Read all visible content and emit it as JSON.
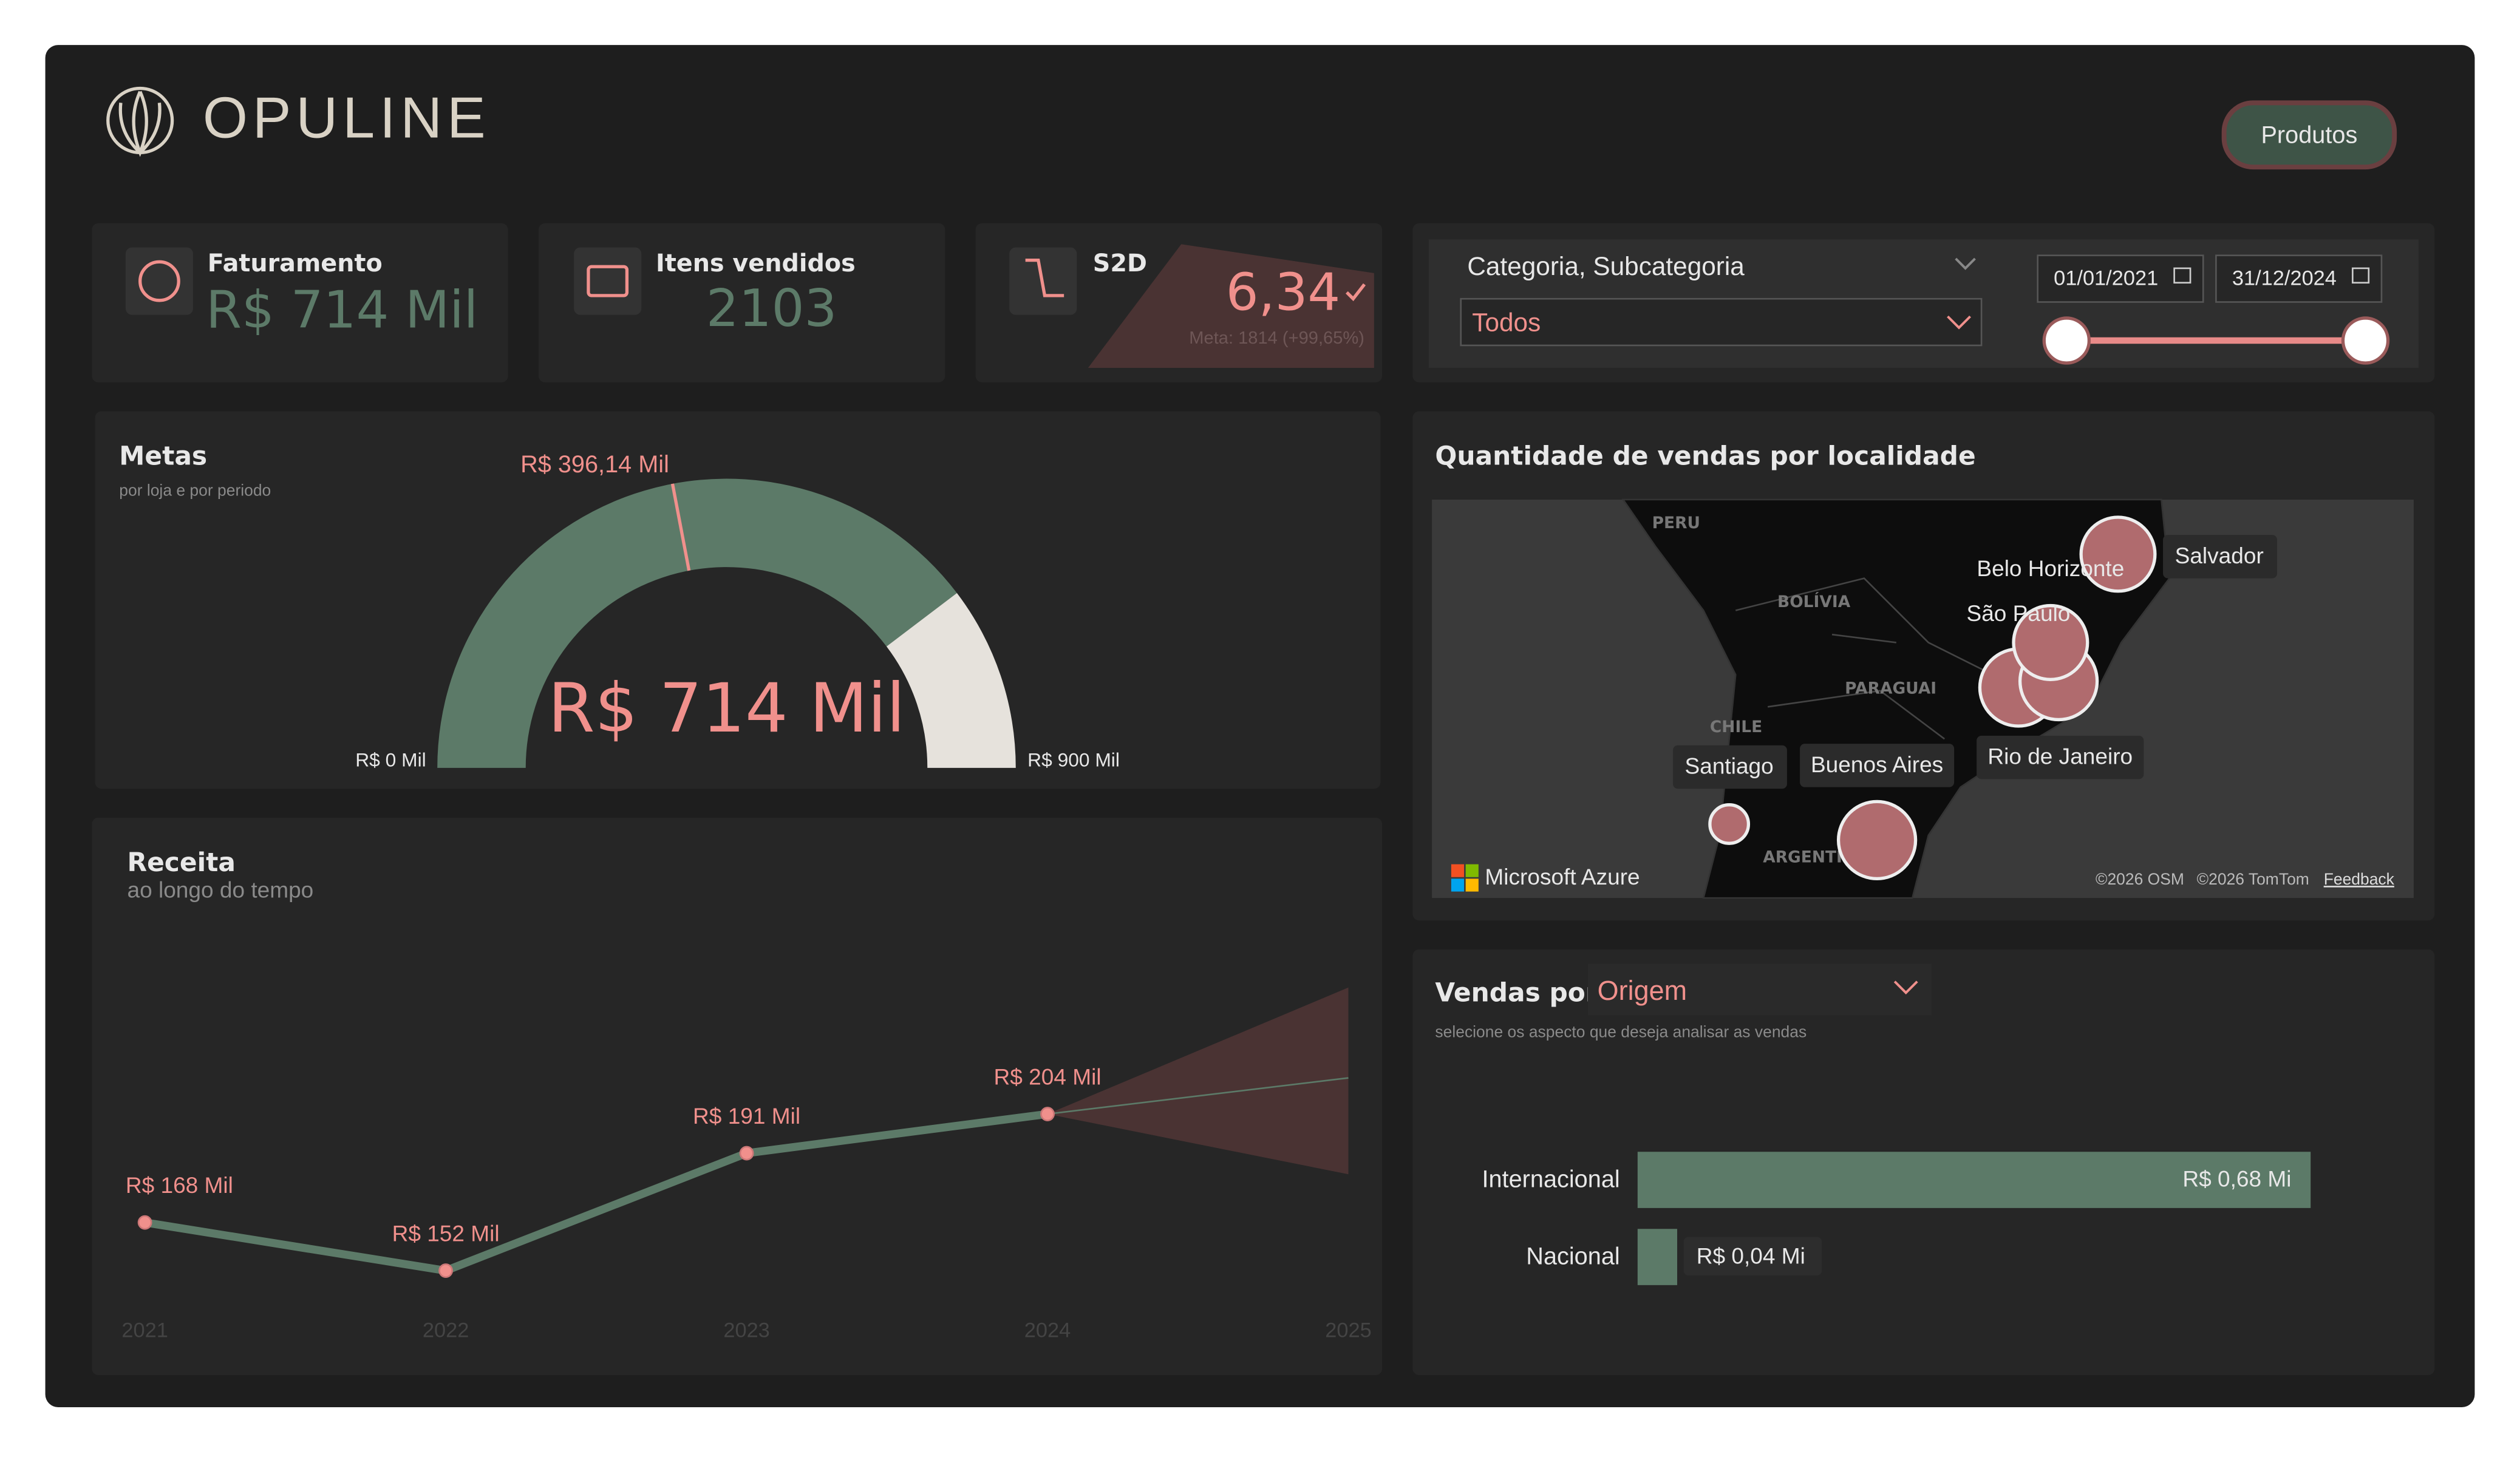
{
  "header": {
    "brand": "OPULINE",
    "button": "Produtos"
  },
  "kpis": [
    {
      "title": "Faturamento",
      "value": "R$ 714 Mil"
    },
    {
      "title": "Itens vendidos",
      "value": "2103"
    },
    {
      "title": "S2D",
      "value": "6,34",
      "note": "Meta: 1814 (+99,65%)"
    }
  ],
  "filters": {
    "label": "Categoria, Subcategoria",
    "selected": "Todos",
    "date_start": "01/01/2021",
    "date_end": "31/12/2024"
  },
  "gauge": {
    "type": "gauge",
    "title": "Metas",
    "subtitle": "por loja e por periodo",
    "value": 714,
    "value_label": "R$ 714 Mil",
    "target": 396.14,
    "target_label": "R$ 396,14 Mil",
    "min": 0,
    "min_label": "R$ 0 Mil",
    "max": 900,
    "max_label": "R$ 900 Mil"
  },
  "revenue": {
    "type": "line",
    "title": "Receita",
    "subtitle": "ao longo do tempo",
    "x": [
      2021,
      2022,
      2023,
      2024
    ],
    "values": [
      168,
      152,
      191,
      204
    ],
    "value_labels": [
      "R$ 168 Mil",
      "R$ 152 Mil",
      "R$ 191 Mil",
      "R$ 204 Mil"
    ],
    "forecast": {
      "x": 2025,
      "value": 216,
      "upper": 246,
      "lower": 184
    },
    "xlim": [
      2021,
      2025
    ],
    "xticks": [
      2021,
      2022,
      2023,
      2024,
      2025
    ]
  },
  "map": {
    "title": "Quantidade de vendas por localidade",
    "cities": [
      "Salvador",
      "Belo Horizonte",
      "São Paulo",
      "Rio de Janeiro",
      "Buenos Aires",
      "Santiago"
    ],
    "countries": [
      "PERU",
      "BOLÍVIA",
      "PARAGUAI",
      "CHILE",
      "ARGENTI"
    ],
    "brand": "Microsoft Azure",
    "credits": [
      "©2026 OSM",
      "©2026 TomTom"
    ],
    "feedback": "Feedback"
  },
  "sales": {
    "type": "bar",
    "title": "Vendas por",
    "dimension": "Origem",
    "subtitle": "selecione os aspecto que deseja analisar as vendas",
    "categories": [
      "Internacional",
      "Nacional"
    ],
    "values": [
      0.68,
      0.04
    ],
    "value_labels": [
      "R$ 0,68 Mi",
      "R$ 0,04 Mi"
    ],
    "color": "#5c7a68"
  }
}
